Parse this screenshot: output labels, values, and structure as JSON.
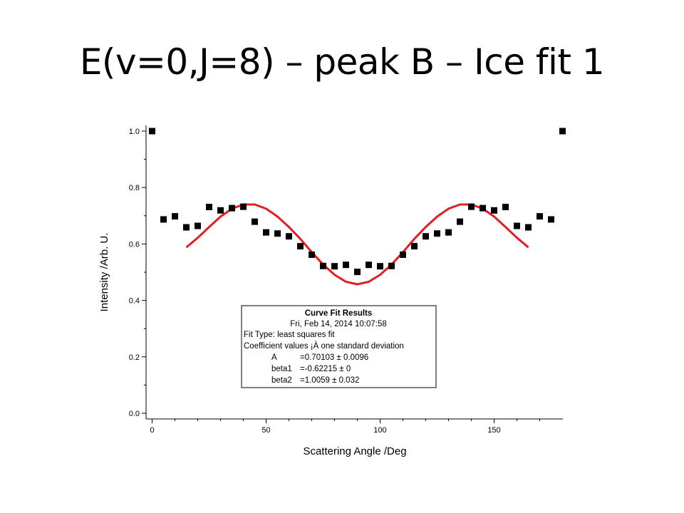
{
  "slide": {
    "title": "E(v=0,J=8) – peak B – Ice fit 1"
  },
  "chart_data": {
    "type": "scatter",
    "title": "",
    "xlabel": "Scattering Angle /Deg",
    "ylabel": "Intensity /Arb. U.",
    "xlim": [
      -5,
      180
    ],
    "ylim": [
      -0.02,
      1.02
    ],
    "x_ticks": [
      0,
      50,
      100,
      150
    ],
    "x_tick_labels": [
      "0",
      "50",
      "100",
      "150"
    ],
    "y_ticks": [
      0.0,
      0.2,
      0.4,
      0.6,
      0.8,
      1.0
    ],
    "y_tick_labels": [
      "0.0",
      "0.2",
      "0.4",
      "0.6",
      "0.8",
      "1.0"
    ],
    "grid": false,
    "series": [
      {
        "kind": "markers",
        "marker": "square",
        "color": "#000000",
        "x": [
          0,
          5,
          10,
          15,
          20,
          25,
          30,
          35,
          40,
          45,
          50,
          55,
          60,
          65,
          70,
          75,
          80,
          85,
          90,
          95,
          100,
          105,
          110,
          115,
          120,
          125,
          130,
          135,
          140,
          145,
          150,
          155,
          160,
          165,
          170,
          175,
          180
        ],
        "y": [
          1.0,
          0.687,
          0.698,
          0.659,
          0.664,
          0.731,
          0.719,
          0.727,
          0.732,
          0.679,
          0.641,
          0.637,
          0.627,
          0.592,
          0.562,
          0.522,
          0.521,
          0.526,
          0.501,
          0.526,
          0.521,
          0.522,
          0.562,
          0.592,
          0.627,
          0.637,
          0.641,
          0.679,
          0.732,
          0.727,
          0.719,
          0.731,
          0.664,
          0.659,
          0.698,
          0.687,
          1.0
        ]
      },
      {
        "kind": "line",
        "color": "#e31e24",
        "x": [
          15,
          20,
          25,
          30,
          35,
          40,
          45,
          50,
          55,
          60,
          65,
          70,
          75,
          80,
          85,
          90,
          95,
          100,
          105,
          110,
          115,
          120,
          125,
          130,
          135,
          140,
          145,
          150,
          155,
          160,
          165
        ],
        "y": [
          0.588,
          0.622,
          0.66,
          0.697,
          0.725,
          0.74,
          0.74,
          0.725,
          0.697,
          0.66,
          0.618,
          0.571,
          0.527,
          0.491,
          0.466,
          0.457,
          0.466,
          0.491,
          0.527,
          0.571,
          0.618,
          0.66,
          0.697,
          0.725,
          0.74,
          0.74,
          0.725,
          0.697,
          0.66,
          0.622,
          0.588
        ]
      }
    ],
    "annotation": {
      "heading": "Curve Fit Results",
      "lines": [
        "Fri, Feb 14, 2014 10:07:58",
        "Fit Type: least squares fit",
        "Coefficient values ¡À one standard deviation"
      ],
      "coefficients": [
        {
          "name": "A",
          "value": "=0.70103 ± 0.0096"
        },
        {
          "name": "beta1",
          "value": "=-0.62215 ± 0"
        },
        {
          "name": "beta2",
          "value": "=1.0059 ± 0.032"
        }
      ]
    }
  }
}
